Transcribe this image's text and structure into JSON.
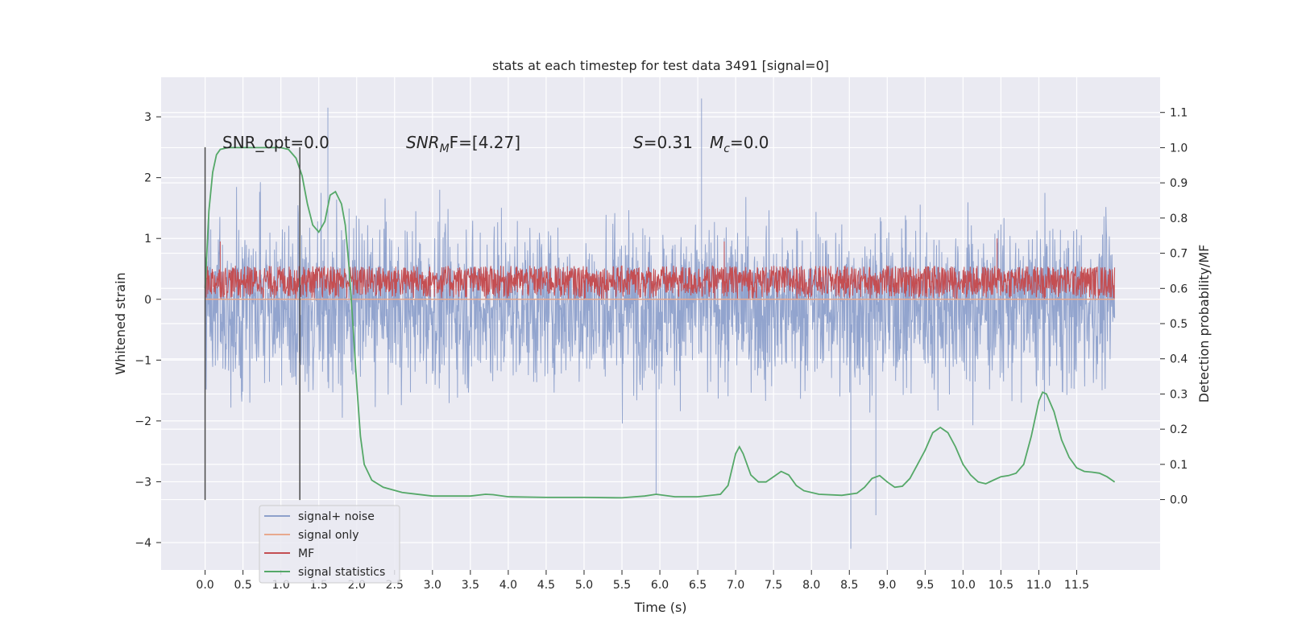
{
  "chart_data": {
    "type": "line",
    "title": "stats at each timestep for test data 3491 [signal=0]",
    "xlabel": "Time (s)",
    "ylabel": "Whitened strain",
    "y2label": "Detection probability/MF",
    "xlim": [
      -0.58,
      12.6
    ],
    "ylim": [
      -4.45,
      3.65
    ],
    "y2lim": [
      -0.2,
      1.2
    ],
    "x_ticks": [
      0.0,
      0.5,
      1.0,
      1.5,
      2.0,
      2.5,
      3.0,
      3.5,
      4.0,
      4.5,
      5.0,
      5.5,
      6.0,
      6.5,
      7.0,
      7.5,
      8.0,
      8.5,
      9.0,
      9.5,
      10.0,
      10.5,
      11.0,
      11.5
    ],
    "x_tick_labels": [
      "0.0",
      "0.5",
      "1.0",
      "1.5",
      "2.0",
      "2.5",
      "3.0",
      "3.5",
      "4.0",
      "4.5",
      "5.0",
      "5.5",
      "6.0",
      "6.5",
      "7.0",
      "7.5",
      "8.0",
      "8.5",
      "9.0",
      "9.5",
      "10.0",
      "10.5",
      "11.0",
      "11.5"
    ],
    "y_ticks": [
      -4,
      -3,
      -2,
      -1,
      0,
      1,
      2,
      3
    ],
    "y_tick_labels": [
      "−4",
      "−3",
      "−2",
      "−1",
      "0",
      "1",
      "2",
      "3"
    ],
    "y2_ticks": [
      0.0,
      0.1,
      0.2,
      0.3,
      0.4,
      0.5,
      0.6,
      0.7,
      0.8,
      0.9,
      1.0,
      1.1
    ],
    "y2_tick_labels": [
      "0.0",
      "0.1",
      "0.2",
      "0.3",
      "0.4",
      "0.5",
      "0.6",
      "0.7",
      "0.8",
      "0.9",
      "1.0",
      "1.1"
    ],
    "grid": true,
    "legend_position": "lower-left",
    "annotations": {
      "snr_opt": "SNR_opt=0.0",
      "snr_mf_base": "SNR",
      "snr_mf_sub": "M",
      "snr_mf_rest": "F=[4.27]",
      "s_base": "S",
      "s_rest": "=0.31",
      "mc_base": "M",
      "mc_sub": "c",
      "mc_rest": "=0.0"
    },
    "vlines": [
      {
        "x": 0.0,
        "y_from": -3.3,
        "y_to": 2.5
      },
      {
        "x": 1.25,
        "y_from": -3.3,
        "y_to": 2.5
      }
    ],
    "series": [
      {
        "name": "signal+ noise",
        "color": "#8da0cb",
        "axis": "left",
        "x_range": [
          0.0,
          12.0
        ],
        "typical_range": [
          -1.6,
          1.4
        ],
        "extremes": [
          {
            "x": 1.62,
            "y": 3.15
          },
          {
            "x": 6.55,
            "y": 3.3
          },
          {
            "x": 8.52,
            "y": -4.1
          },
          {
            "x": 8.85,
            "y": -3.55
          },
          {
            "x": 5.95,
            "y": -3.2
          }
        ]
      },
      {
        "name": "signal only",
        "color": "#e8a98e",
        "axis": "left",
        "x_range": [
          0.0,
          12.0
        ],
        "value": 0.0
      },
      {
        "name": "MF",
        "color": "#c44e52",
        "axis": "left",
        "x_range": [
          0.0,
          12.0
        ],
        "typical_range": [
          0.0,
          0.55
        ],
        "peaks": [
          {
            "x": 0.2,
            "y": 0.95
          },
          {
            "x": 6.85,
            "y": 0.95
          },
          {
            "x": 10.45,
            "y": 1.0
          }
        ]
      },
      {
        "name": "signal statistics",
        "color": "#55a868",
        "axis": "right",
        "points": [
          [
            0.0,
            0.6
          ],
          [
            0.05,
            0.82
          ],
          [
            0.1,
            0.93
          ],
          [
            0.15,
            0.98
          ],
          [
            0.2,
            0.995
          ],
          [
            0.3,
            1.0
          ],
          [
            0.5,
            1.0
          ],
          [
            0.8,
            1.0
          ],
          [
            1.0,
            1.0
          ],
          [
            1.1,
            0.995
          ],
          [
            1.2,
            0.97
          ],
          [
            1.28,
            0.92
          ],
          [
            1.35,
            0.84
          ],
          [
            1.42,
            0.78
          ],
          [
            1.5,
            0.76
          ],
          [
            1.58,
            0.79
          ],
          [
            1.65,
            0.865
          ],
          [
            1.72,
            0.875
          ],
          [
            1.8,
            0.84
          ],
          [
            1.85,
            0.78
          ],
          [
            1.9,
            0.66
          ],
          [
            1.95,
            0.5
          ],
          [
            2.0,
            0.33
          ],
          [
            2.05,
            0.18
          ],
          [
            2.1,
            0.1
          ],
          [
            2.2,
            0.055
          ],
          [
            2.35,
            0.035
          ],
          [
            2.6,
            0.02
          ],
          [
            3.0,
            0.01
          ],
          [
            3.5,
            0.01
          ],
          [
            3.7,
            0.015
          ],
          [
            3.8,
            0.014
          ],
          [
            4.0,
            0.008
          ],
          [
            4.5,
            0.006
          ],
          [
            5.0,
            0.006
          ],
          [
            5.5,
            0.005
          ],
          [
            5.8,
            0.01
          ],
          [
            5.95,
            0.015
          ],
          [
            6.2,
            0.008
          ],
          [
            6.5,
            0.008
          ],
          [
            6.8,
            0.015
          ],
          [
            6.9,
            0.04
          ],
          [
            7.0,
            0.13
          ],
          [
            7.05,
            0.15
          ],
          [
            7.1,
            0.13
          ],
          [
            7.2,
            0.07
          ],
          [
            7.3,
            0.05
          ],
          [
            7.4,
            0.05
          ],
          [
            7.5,
            0.065
          ],
          [
            7.6,
            0.08
          ],
          [
            7.7,
            0.07
          ],
          [
            7.8,
            0.04
          ],
          [
            7.9,
            0.025
          ],
          [
            8.1,
            0.015
          ],
          [
            8.4,
            0.012
          ],
          [
            8.6,
            0.018
          ],
          [
            8.7,
            0.035
          ],
          [
            8.8,
            0.06
          ],
          [
            8.9,
            0.068
          ],
          [
            9.0,
            0.05
          ],
          [
            9.1,
            0.035
          ],
          [
            9.2,
            0.038
          ],
          [
            9.3,
            0.06
          ],
          [
            9.4,
            0.1
          ],
          [
            9.5,
            0.14
          ],
          [
            9.6,
            0.19
          ],
          [
            9.7,
            0.205
          ],
          [
            9.8,
            0.19
          ],
          [
            9.9,
            0.15
          ],
          [
            10.0,
            0.1
          ],
          [
            10.1,
            0.07
          ],
          [
            10.2,
            0.05
          ],
          [
            10.3,
            0.045
          ],
          [
            10.4,
            0.055
          ],
          [
            10.5,
            0.065
          ],
          [
            10.6,
            0.068
          ],
          [
            10.7,
            0.075
          ],
          [
            10.8,
            0.1
          ],
          [
            10.9,
            0.18
          ],
          [
            11.0,
            0.28
          ],
          [
            11.05,
            0.305
          ],
          [
            11.1,
            0.3
          ],
          [
            11.2,
            0.25
          ],
          [
            11.3,
            0.17
          ],
          [
            11.4,
            0.12
          ],
          [
            11.5,
            0.09
          ],
          [
            11.6,
            0.08
          ],
          [
            11.7,
            0.078
          ],
          [
            11.8,
            0.075
          ],
          [
            11.9,
            0.065
          ],
          [
            12.0,
            0.05
          ]
        ]
      }
    ]
  }
}
